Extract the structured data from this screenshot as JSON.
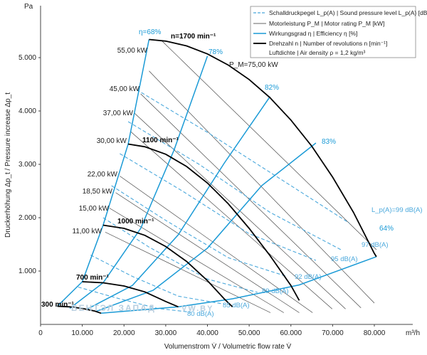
{
  "chart_data": {
    "type": "line",
    "xlabel": "Volumenstrom V̇ / Volumetric flow rate V̇",
    "x_unit": "m³/h",
    "ylabel": "Druckerhöhung Δp_t / Pressure increase Δp_t",
    "y_unit": "Pa",
    "xlim": [
      0,
      80000
    ],
    "ylim": [
      0,
      5400
    ],
    "x_ticks": [
      "0",
      "10.000",
      "20.000",
      "30.000",
      "40.000",
      "50.000",
      "60.000",
      "70.000",
      "80.000"
    ],
    "y_ticks": [
      "1.000",
      "2.000",
      "3.000",
      "4.000",
      "5.000"
    ],
    "legend": [
      {
        "key": "noise",
        "text": "Schalldruckpegel L_p(A) | Sound pressure level L_p(A) [dB(A)]"
      },
      {
        "key": "power",
        "text": "Motorleistung P_M | Motor rating P_M [kW]"
      },
      {
        "key": "efficiency",
        "text": "Wirkungsgrad η | Efficiency η [%]"
      },
      {
        "key": "speed",
        "text": "Drehzahl n | Number of revolutions n [min⁻¹]"
      },
      {
        "key": "density",
        "text": "Luftdichte | Air density ρ = 1,2 kg/m³"
      }
    ],
    "speed_curves": [
      {
        "label": "300 min⁻¹",
        "points": [
          [
            4000,
            340
          ],
          [
            7000,
            330
          ],
          [
            10000,
            300
          ],
          [
            13000,
            250
          ],
          [
            14500,
            210
          ]
        ]
      },
      {
        "label": "700 min⁻¹",
        "points": [
          [
            10000,
            800
          ],
          [
            15000,
            780
          ],
          [
            20000,
            720
          ],
          [
            25000,
            610
          ],
          [
            30000,
            430
          ],
          [
            33000,
            330
          ]
        ]
      },
      {
        "label": "1000 min⁻¹",
        "points": [
          [
            15000,
            1860
          ],
          [
            20000,
            1800
          ],
          [
            25000,
            1670
          ],
          [
            30000,
            1460
          ],
          [
            35000,
            1180
          ],
          [
            40000,
            820
          ],
          [
            44000,
            480
          ],
          [
            46000,
            330
          ]
        ]
      },
      {
        "label": "1100 min⁻¹",
        "points": [
          [
            21000,
            3380
          ],
          [
            25000,
            3330
          ],
          [
            30000,
            3190
          ],
          [
            35000,
            2960
          ],
          [
            40000,
            2650
          ],
          [
            45000,
            2260
          ],
          [
            50000,
            1800
          ],
          [
            55000,
            1290
          ],
          [
            60000,
            730
          ],
          [
            62000,
            450
          ]
        ]
      },
      {
        "label": "n=1700 min⁻¹",
        "points": [
          [
            26000,
            5340
          ],
          [
            30000,
            5310
          ],
          [
            35000,
            5220
          ],
          [
            40000,
            5070
          ],
          [
            45000,
            4860
          ],
          [
            50000,
            4590
          ],
          [
            55000,
            4250
          ],
          [
            60000,
            3830
          ],
          [
            65000,
            3340
          ],
          [
            70000,
            2760
          ],
          [
            75000,
            2100
          ],
          [
            80000,
            1330
          ],
          [
            80500,
            1270
          ]
        ]
      }
    ],
    "efficiency_lines": [
      {
        "label": "η=68%",
        "points": [
          [
            4000,
            340
          ],
          [
            10000,
            800
          ],
          [
            15000,
            1860
          ],
          [
            21000,
            3380
          ],
          [
            26000,
            5340
          ]
        ]
      },
      {
        "label": "78%",
        "points": [
          [
            7000,
            300
          ],
          [
            15000,
            780
          ],
          [
            24000,
            1800
          ],
          [
            32000,
            3270
          ],
          [
            40000,
            5030
          ]
        ]
      },
      {
        "label": "82%",
        "points": [
          [
            11000,
            280
          ],
          [
            22000,
            730
          ],
          [
            33000,
            1680
          ],
          [
            44000,
            3020
          ],
          [
            55000,
            4270
          ]
        ]
      },
      {
        "label": "83%",
        "points": [
          [
            13500,
            250
          ],
          [
            27000,
            640
          ],
          [
            40000,
            1430
          ],
          [
            53000,
            2600
          ],
          [
            66000,
            3400
          ]
        ]
      },
      {
        "label": "64%",
        "points": [
          [
            14500,
            210
          ],
          [
            33000,
            330
          ],
          [
            46000,
            480
          ],
          [
            62000,
            740
          ],
          [
            80500,
            1270
          ]
        ]
      }
    ],
    "power_labels": [
      "55,00 kW",
      "45,00 kW",
      "37,00 kW",
      "30,00 kW",
      "22,00 kW",
      "18,50 kW",
      "15,00 kW",
      "11,00 kW"
    ],
    "power_label_max": "P_M=75,00 kW",
    "noise_labels": [
      "L_p(A)=99 dB(A)",
      "97 dB(A)",
      "95 dB(A)",
      "92 dB(A)",
      "89 dB(A)",
      "85 dB(A)",
      "80 dB(A)"
    ],
    "speed_labels": [
      "300 min⁻¹",
      "700 min⁻¹",
      "1000 min⁻¹",
      "1100 min⁻¹",
      "n=1700 min⁻¹"
    ],
    "eff_labels": [
      "η=68%",
      "78%",
      "82%",
      "83%",
      "64%"
    ],
    "y_unit_label": "Pa",
    "x_unit_label": "m³/h",
    "watermark": "ВЕНТЭЛ ЗАПАД",
    "watermark2": "VW.BY",
    "colors": {
      "efficiency": "#1a9ad6",
      "noise": "#4aa8dc",
      "speed": "#000000",
      "power": "#333333"
    }
  }
}
